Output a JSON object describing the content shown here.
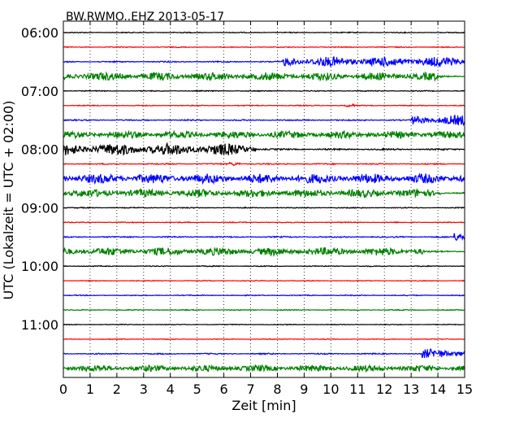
{
  "chart_data": {
    "type": "line",
    "title": "BW.RWMO..EHZ 2013-05-17",
    "xlabel": "Zeit  [min]",
    "ylabel": "UTC (Lokalzeit = UTC + 02:00)",
    "xlim": [
      0,
      15
    ],
    "x_ticks": [
      "0",
      "1",
      "2",
      "3",
      "4",
      "5",
      "6",
      "7",
      "8",
      "9",
      "10",
      "11",
      "12",
      "13",
      "14",
      "15"
    ],
    "y_ticks": [
      "06:00",
      "07:00",
      "08:00",
      "09:00",
      "10:00",
      "11:00"
    ],
    "grid": "vertical dotted",
    "colors": [
      "#000000",
      "#ff0000",
      "#0000ff",
      "#008000"
    ],
    "traces": [
      {
        "row": 0,
        "color": "#000000",
        "amplitude": 0.6,
        "bursts": []
      },
      {
        "row": 1,
        "color": "#ff0000",
        "amplitude": 0.6,
        "bursts": []
      },
      {
        "row": 2,
        "color": "#0000ff",
        "amplitude": 0.8,
        "bursts": [
          {
            "from": 8.2,
            "to": 15,
            "amp": 5.5
          }
        ]
      },
      {
        "row": 3,
        "color": "#008000",
        "amplitude": 5.0,
        "bursts": [
          {
            "from": 14.0,
            "to": 15,
            "amp": -3.5
          }
        ]
      },
      {
        "row": 4,
        "color": "#000000",
        "amplitude": 0.6,
        "bursts": []
      },
      {
        "row": 5,
        "color": "#ff0000",
        "amplitude": 0.6,
        "bursts": [
          {
            "from": 10.5,
            "to": 10.9,
            "amp": 1.2
          }
        ]
      },
      {
        "row": 6,
        "color": "#0000ff",
        "amplitude": 0.8,
        "bursts": [
          {
            "from": 13.0,
            "to": 15,
            "amp": 5.5
          }
        ]
      },
      {
        "row": 7,
        "color": "#008000",
        "amplitude": 4.5,
        "bursts": []
      },
      {
        "row": 8,
        "color": "#000000",
        "amplitude": 1.0,
        "bursts": [
          {
            "from": 0,
            "to": 7.2,
            "amp": 6.5
          }
        ]
      },
      {
        "row": 9,
        "color": "#ff0000",
        "amplitude": 0.8,
        "bursts": [
          {
            "from": 6.2,
            "to": 6.6,
            "amp": 2.5
          }
        ]
      },
      {
        "row": 10,
        "color": "#0000ff",
        "amplitude": 4.5,
        "bursts": [
          {
            "from": 0,
            "to": 15,
            "amp": 1.5
          }
        ]
      },
      {
        "row": 11,
        "color": "#008000",
        "amplitude": 5.0,
        "bursts": [
          {
            "from": 14.2,
            "to": 15,
            "amp": -4.0
          }
        ]
      },
      {
        "row": 12,
        "color": "#000000",
        "amplitude": 0.6,
        "bursts": []
      },
      {
        "row": 13,
        "color": "#ff0000",
        "amplitude": 0.6,
        "bursts": []
      },
      {
        "row": 14,
        "color": "#0000ff",
        "amplitude": 0.8,
        "bursts": [
          {
            "from": 14.6,
            "to": 15,
            "amp": 5.5
          }
        ]
      },
      {
        "row": 15,
        "color": "#008000",
        "amplitude": 5.0,
        "bursts": [
          {
            "from": 13.5,
            "to": 15,
            "amp": -4.0
          }
        ]
      },
      {
        "row": 16,
        "color": "#000000",
        "amplitude": 0.6,
        "bursts": []
      },
      {
        "row": 17,
        "color": "#ff0000",
        "amplitude": 0.5,
        "bursts": []
      },
      {
        "row": 18,
        "color": "#0000ff",
        "amplitude": 0.6,
        "bursts": []
      },
      {
        "row": 19,
        "color": "#008000",
        "amplitude": 0.6,
        "bursts": []
      },
      {
        "row": 20,
        "color": "#000000",
        "amplitude": 0.5,
        "bursts": []
      },
      {
        "row": 21,
        "color": "#ff0000",
        "amplitude": 0.5,
        "bursts": []
      },
      {
        "row": 22,
        "color": "#0000ff",
        "amplitude": 0.8,
        "bursts": [
          {
            "from": 13.4,
            "to": 15,
            "amp": 5.0
          }
        ]
      },
      {
        "row": 23,
        "color": "#008000",
        "amplitude": 4.0,
        "bursts": []
      }
    ]
  }
}
